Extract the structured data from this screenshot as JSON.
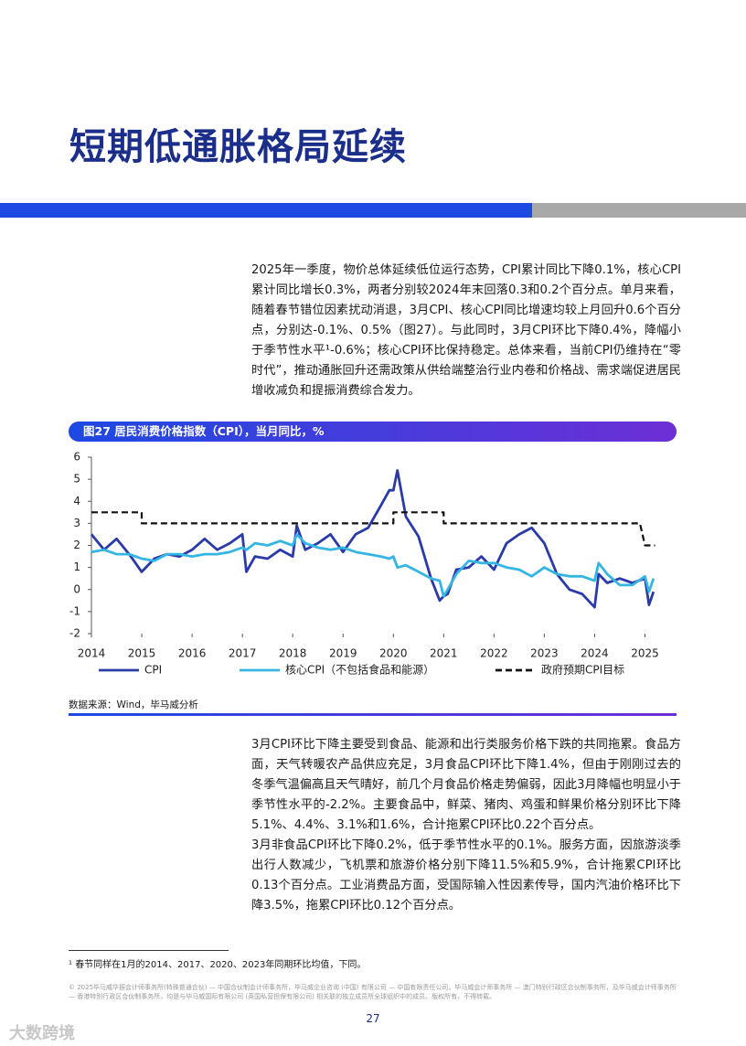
{
  "header": {
    "title": "短期低通胀格局延续"
  },
  "intro": "2025年一季度，物价总体延续低位运行态势，CPI累计同比下降0.1%，核心CPI累计同比增长0.3%，两者分别较2024年末回落0.3和0.2个百分点。单月来看，随着春节错位因素扰动消退，3月CPI、核心CPI同比增速均较上月回升0.6个百分点，分别达-0.1%、0.5%（图27）。与此同时，3月CPI环比下降0.4%，降幅小于季节性水平¹-0.6%；核心CPI环比保持稳定。总体来看，当前CPI仍维持在“零时代”，推动通胀回升还需政策从供给端整治行业内卷和价格战、需求端促进居民增收减负和提振消费综合发力。",
  "chart_data": {
    "type": "line",
    "title": "图27 居民消费价格指数（CPI），当月同比，%",
    "x": [
      2014,
      2014.25,
      2014.5,
      2014.75,
      2015,
      2015.25,
      2015.5,
      2015.75,
      2016,
      2016.25,
      2016.5,
      2016.75,
      2017,
      2017.08,
      2017.25,
      2017.5,
      2017.75,
      2018,
      2018.08,
      2018.25,
      2018.5,
      2018.75,
      2019,
      2019.25,
      2019.5,
      2019.75,
      2019.92,
      2020,
      2020.08,
      2020.25,
      2020.5,
      2020.75,
      2020.92,
      2021,
      2021.08,
      2021.25,
      2021.5,
      2021.75,
      2022,
      2022.25,
      2022.5,
      2022.75,
      2023,
      2023.25,
      2023.5,
      2023.75,
      2024,
      2024.08,
      2024.25,
      2024.5,
      2024.75,
      2025,
      2025.08,
      2025.17
    ],
    "series": [
      {
        "name": "CPI",
        "color": "#2a3aa8",
        "values": [
          2.5,
          1.8,
          2.3,
          1.6,
          0.8,
          1.4,
          1.6,
          1.5,
          1.8,
          2.3,
          1.8,
          2.1,
          2.5,
          0.8,
          1.5,
          1.4,
          1.8,
          1.5,
          2.9,
          1.8,
          2.1,
          2.5,
          1.7,
          2.5,
          2.8,
          3.8,
          4.5,
          4.5,
          5.4,
          3.3,
          2.4,
          0.5,
          -0.5,
          -0.3,
          -0.2,
          0.9,
          1.0,
          1.5,
          0.9,
          2.1,
          2.5,
          2.8,
          2.1,
          0.7,
          0.0,
          -0.2,
          -0.8,
          0.7,
          0.3,
          0.5,
          0.3,
          0.5,
          -0.7,
          -0.1
        ]
      },
      {
        "name": "核心CPI（不包括食品和能源）",
        "color": "#35b6e2",
        "values": [
          1.7,
          1.8,
          1.6,
          1.6,
          1.4,
          1.3,
          1.6,
          1.6,
          1.5,
          1.6,
          1.6,
          1.7,
          1.9,
          1.8,
          2.1,
          2.0,
          2.2,
          2.0,
          2.5,
          2.1,
          1.9,
          1.8,
          1.9,
          1.7,
          1.6,
          1.5,
          1.4,
          1.5,
          1.0,
          1.1,
          0.8,
          0.5,
          0.4,
          -0.3,
          0.0,
          0.7,
          1.3,
          1.2,
          1.2,
          1.0,
          0.9,
          0.6,
          1.0,
          0.7,
          0.6,
          0.6,
          0.4,
          1.2,
          0.7,
          0.2,
          0.2,
          0.6,
          -0.1,
          0.5
        ]
      },
      {
        "name": "政府预期CPI目标",
        "color": "#111111",
        "dash": true,
        "x": [
          2014,
          2015,
          2015,
          2020,
          2020,
          2021,
          2021,
          2024.9,
          2025,
          2025.2
        ],
        "values": [
          3.5,
          3.5,
          3,
          3,
          3.5,
          3.5,
          3,
          3,
          2,
          2
        ]
      }
    ],
    "xlim": [
      2014,
      2025.3
    ],
    "xticks": [
      2014,
      2015,
      2016,
      2017,
      2018,
      2019,
      2020,
      2021,
      2022,
      2023,
      2024,
      2025
    ],
    "ylim": [
      -2,
      6
    ],
    "yticks": [
      -2,
      -1,
      0,
      1,
      2,
      3,
      4,
      5,
      6
    ],
    "grid": false,
    "source": "数据来源：Wind，毕马威分析"
  },
  "body": [
    "3月CPI环比下降主要受到食品、能源和出行类服务价格下跌的共同拖累。食品方面，天气转暖农产品供应充足，3月食品CPI环比下降1.4%，但由于刚刚过去的冬季气温偏高且天气晴好，前几个月食品价格走势偏弱，因此3月降幅也明显小于季节性水平的-2.2%。主要食品中，鲜菜、猪肉、鸡蛋和鲜果价格分别环比下降5.1%、4.4%、3.1%和1.6%，合计拖累CPI环比0.22个百分点。",
    "3月非食品CPI环比下降0.2%，低于季节性水平的0.1%。服务方面，因旅游淡季出行人数减少，飞机票和旅游价格分别下降11.5%和5.9%，合计拖累CPI环比0.13个百分点。工业消费品方面，受国际输入性因素传导，国内汽油价格环比下降3.5%，拖累CPI环比0.12个百分点。"
  ],
  "footnote": "¹ 春节同样在1月的2014、2017、2020、2023年同期环比均值，下同。",
  "copyright": "© 2025毕马威华振会计师事务所(特殊普通合伙) — 中国合伙制会计师事务所，毕马威企业咨询 (中国) 有限公司 — 中国有限责任公司，毕马威会计师事务所 — 澳门特别行政区合伙制事务所，及毕马威会计师事务所 — 香港特别行政区合伙制事务所，均是与毕马威国际有限公司 (英国私营担保有限公司) 相关联的独立成员所全球组织中的成员。版权所有，不得转载。",
  "page_number": "27",
  "watermark": "大数跨境"
}
